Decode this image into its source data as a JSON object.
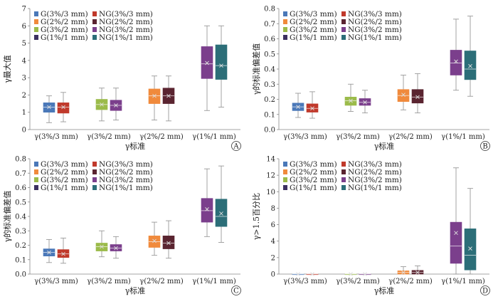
{
  "colors": {
    "G_3": "#4a78b8",
    "NG_3": "#c0392b",
    "G_2": "#f08a3c",
    "NG_2": "#5a2430",
    "G_c": "#9bbb4a",
    "NG_c": "#7b3f8c",
    "G_1": "#3c3060",
    "NG_1": "#2c6e78"
  },
  "chart_data": [
    {
      "panel": "A",
      "type": "box",
      "categories": [
        "γ(3%/3 mm)",
        "γ(3%/2 mm)",
        "γ(2%/2 mm)",
        "γ(1%/1 mm)"
      ],
      "xlabel": "γ标准",
      "ylabel": "γ最大值",
      "ylim": [
        0,
        7
      ],
      "yticks": [
        0,
        1,
        2,
        3,
        4,
        5,
        6,
        7
      ],
      "legend": {
        "placement": "top-left",
        "items": [
          {
            "label": "G(3%/3 mm)",
            "color": "#4a78b8"
          },
          {
            "label": "NG(3%/3 mm)",
            "color": "#c0392b"
          },
          {
            "label": "G(2%/2 mm)",
            "color": "#f08a3c"
          },
          {
            "label": "NG(2%/2 mm)",
            "color": "#5a2430"
          },
          {
            "label": "G(3%/2 mm)",
            "color": "#9bbb4a"
          },
          {
            "label": "NG(3%/2 mm)",
            "color": "#7b3f8c"
          },
          {
            "label": "G(1%/1 mm)",
            "color": "#3c3060"
          },
          {
            "label": "NG(1%/1 mm)",
            "color": "#2c6e78"
          }
        ]
      },
      "boxes": [
        {
          "group": 0,
          "color": "#4a78b8",
          "whisker_low": 0.4,
          "q1": 1.0,
          "median": 1.3,
          "q3": 1.55,
          "whisker_high": 1.95,
          "mean": 1.3
        },
        {
          "group": 0,
          "color": "#c0392b",
          "whisker_low": 0.45,
          "q1": 0.95,
          "median": 1.3,
          "q3": 1.55,
          "whisker_high": 2.15,
          "mean": 1.3
        },
        {
          "group": 1,
          "color": "#9bbb4a",
          "whisker_low": 0.5,
          "q1": 1.15,
          "median": 1.45,
          "q3": 1.75,
          "whisker_high": 2.4,
          "mean": 1.45
        },
        {
          "group": 1,
          "color": "#7b3f8c",
          "whisker_low": 0.55,
          "q1": 1.1,
          "median": 1.4,
          "q3": 1.7,
          "whisker_high": 2.4,
          "mean": 1.4
        },
        {
          "group": 2,
          "color": "#f08a3c",
          "whisker_low": 0.55,
          "q1": 1.5,
          "median": 1.95,
          "q3": 2.35,
          "whisker_high": 3.1,
          "mean": 1.95
        },
        {
          "group": 2,
          "color": "#5a2430",
          "whisker_low": 0.5,
          "q1": 1.5,
          "median": 1.95,
          "q3": 2.4,
          "whisker_high": 3.1,
          "mean": 1.95
        },
        {
          "group": 3,
          "color": "#7b3f8c",
          "whisker_low": 1.1,
          "q1": 2.95,
          "median": 3.8,
          "q3": 4.8,
          "whisker_high": 6.0,
          "mean": 3.85
        },
        {
          "group": 3,
          "color": "#2c6e78",
          "whisker_low": 1.3,
          "q1": 2.9,
          "median": 3.7,
          "q3": 4.9,
          "whisker_high": 6.0,
          "mean": 3.7
        }
      ]
    },
    {
      "panel": "B",
      "type": "box",
      "categories": [
        "γ(3%/3 mm)",
        "γ(3%/2 mm)",
        "γ(2%/2 mm)",
        "γ(1%/1 mm)"
      ],
      "xlabel": "γ标准",
      "ylabel": "γ的标准偏差值",
      "ylim": [
        0,
        0.8
      ],
      "yticks": [
        0,
        0.1,
        0.2,
        0.3,
        0.4,
        0.5,
        0.6,
        0.7,
        0.8
      ],
      "legend": {
        "placement": "top-left",
        "items": [
          {
            "label": "G(3%/3 mm)",
            "color": "#4a78b8"
          },
          {
            "label": "NG(3%/3 mm)",
            "color": "#c0392b"
          },
          {
            "label": "G(2%/2 mm)",
            "color": "#f08a3c"
          },
          {
            "label": "NG(2%/2 mm)",
            "color": "#5a2430"
          },
          {
            "label": "G(3%/2 mm)",
            "color": "#9bbb4a"
          },
          {
            "label": "NG(3%/2 mm)",
            "color": "#7b3f8c"
          },
          {
            "label": "G(1%/1 mm)",
            "color": "#3c3060"
          },
          {
            "label": "NG(1%/1 mm)",
            "color": "#2c6e78"
          }
        ]
      },
      "boxes": [
        {
          "group": 0,
          "color": "#4a78b8",
          "whisker_low": 0.08,
          "q1": 0.125,
          "median": 0.15,
          "q3": 0.175,
          "whisker_high": 0.24,
          "mean": 0.15
        },
        {
          "group": 0,
          "color": "#c0392b",
          "whisker_low": 0.075,
          "q1": 0.115,
          "median": 0.14,
          "q3": 0.17,
          "whisker_high": 0.25,
          "mean": 0.14
        },
        {
          "group": 1,
          "color": "#9bbb4a",
          "whisker_low": 0.12,
          "q1": 0.16,
          "median": 0.19,
          "q3": 0.215,
          "whisker_high": 0.3,
          "mean": 0.19
        },
        {
          "group": 1,
          "color": "#7b3f8c",
          "whisker_low": 0.11,
          "q1": 0.16,
          "median": 0.18,
          "q3": 0.205,
          "whisker_high": 0.26,
          "mean": 0.18
        },
        {
          "group": 2,
          "color": "#f08a3c",
          "whisker_low": 0.13,
          "q1": 0.185,
          "median": 0.225,
          "q3": 0.265,
          "whisker_high": 0.36,
          "mean": 0.23
        },
        {
          "group": 2,
          "color": "#5a2430",
          "whisker_low": 0.11,
          "q1": 0.175,
          "median": 0.215,
          "q3": 0.265,
          "whisker_high": 0.37,
          "mean": 0.215
        },
        {
          "group": 3,
          "color": "#7b3f8c",
          "whisker_low": 0.26,
          "q1": 0.36,
          "median": 0.44,
          "q3": 0.525,
          "whisker_high": 0.73,
          "mean": 0.45
        },
        {
          "group": 3,
          "color": "#2c6e78",
          "whisker_low": 0.22,
          "q1": 0.33,
          "median": 0.4,
          "q3": 0.52,
          "whisker_high": 0.75,
          "mean": 0.42
        }
      ]
    },
    {
      "panel": "C",
      "type": "box",
      "categories": [
        "γ(3%/3 mm)",
        "γ(3%/2 mm)",
        "γ(2%/2 mm)",
        "γ(1%/1 mm)"
      ],
      "xlabel": "γ标准",
      "ylabel": "γ的标准偏差值",
      "ylim": [
        0,
        0.8
      ],
      "yticks": [
        0,
        0.1,
        0.2,
        0.3,
        0.4,
        0.5,
        0.6,
        0.7,
        0.8
      ],
      "legend": {
        "placement": "top-left",
        "items": [
          {
            "label": "G(3%/3 mm)",
            "color": "#4a78b8"
          },
          {
            "label": "NG(3%/3 mm)",
            "color": "#c0392b"
          },
          {
            "label": "G(2%/2 mm)",
            "color": "#f08a3c"
          },
          {
            "label": "NG(2%/2 mm)",
            "color": "#5a2430"
          },
          {
            "label": "G(3%/2 mm)",
            "color": "#9bbb4a"
          },
          {
            "label": "NG(3%/2 mm)",
            "color": "#7b3f8c"
          },
          {
            "label": "G(1%/1 mm)",
            "color": "#3c3060"
          },
          {
            "label": "NG(1%/1 mm)",
            "color": "#2c6e78"
          }
        ]
      },
      "boxes": [
        {
          "group": 0,
          "color": "#4a78b8",
          "whisker_low": 0.08,
          "q1": 0.125,
          "median": 0.15,
          "q3": 0.175,
          "whisker_high": 0.24,
          "mean": 0.15
        },
        {
          "group": 0,
          "color": "#c0392b",
          "whisker_low": 0.075,
          "q1": 0.115,
          "median": 0.14,
          "q3": 0.17,
          "whisker_high": 0.25,
          "mean": 0.14
        },
        {
          "group": 1,
          "color": "#9bbb4a",
          "whisker_low": 0.12,
          "q1": 0.16,
          "median": 0.19,
          "q3": 0.215,
          "whisker_high": 0.3,
          "mean": 0.19
        },
        {
          "group": 1,
          "color": "#7b3f8c",
          "whisker_low": 0.11,
          "q1": 0.16,
          "median": 0.18,
          "q3": 0.205,
          "whisker_high": 0.26,
          "mean": 0.18
        },
        {
          "group": 2,
          "color": "#f08a3c",
          "whisker_low": 0.13,
          "q1": 0.185,
          "median": 0.225,
          "q3": 0.265,
          "whisker_high": 0.36,
          "mean": 0.23
        },
        {
          "group": 2,
          "color": "#5a2430",
          "whisker_low": 0.11,
          "q1": 0.175,
          "median": 0.215,
          "q3": 0.265,
          "whisker_high": 0.37,
          "mean": 0.215
        },
        {
          "group": 3,
          "color": "#7b3f8c",
          "whisker_low": 0.26,
          "q1": 0.36,
          "median": 0.44,
          "q3": 0.525,
          "whisker_high": 0.73,
          "mean": 0.45
        },
        {
          "group": 3,
          "color": "#2c6e78",
          "whisker_low": 0.22,
          "q1": 0.33,
          "median": 0.4,
          "q3": 0.52,
          "whisker_high": 0.75,
          "mean": 0.42
        }
      ]
    },
    {
      "panel": "D",
      "type": "box",
      "categories": [
        "γ(3%/3 mm)",
        "γ(3%/2 mm)",
        "γ(2%/2 mm)",
        "γ(1%/1 mm)"
      ],
      "xlabel": "γ标准",
      "ylabel": "γ>1.5百分比",
      "ylim": [
        0,
        14
      ],
      "yticks": [
        0,
        2,
        4,
        6,
        8,
        10,
        12,
        14
      ],
      "legend": {
        "placement": "top-left",
        "items": [
          {
            "label": "G(3%/3 mm)",
            "color": "#4a78b8"
          },
          {
            "label": "NG(3%/3 mm)",
            "color": "#c0392b"
          },
          {
            "label": "G(2%/2 mm)",
            "color": "#f08a3c"
          },
          {
            "label": "NG(2%/2 mm)",
            "color": "#5a2430"
          },
          {
            "label": "G(3%/2 mm)",
            "color": "#9bbb4a"
          },
          {
            "label": "NG(3%/2 mm)",
            "color": "#7b3f8c"
          },
          {
            "label": "G(1%/1 mm)",
            "color": "#3c3060"
          },
          {
            "label": "NG(1%/1 mm)",
            "color": "#2c6e78"
          }
        ]
      },
      "boxes": [
        {
          "group": 0,
          "color": "#4a78b8",
          "whisker_low": 0,
          "q1": 0,
          "median": 0,
          "q3": 0,
          "whisker_high": 0,
          "mean": 0
        },
        {
          "group": 0,
          "color": "#c0392b",
          "whisker_low": 0,
          "q1": 0,
          "median": 0,
          "q3": 0,
          "whisker_high": 0,
          "mean": 0
        },
        {
          "group": 1,
          "color": "#9bbb4a",
          "whisker_low": 0,
          "q1": 0,
          "median": 0,
          "q3": 0,
          "whisker_high": 0,
          "mean": 0
        },
        {
          "group": 1,
          "color": "#7b3f8c",
          "whisker_low": 0,
          "q1": 0,
          "median": 0,
          "q3": 0,
          "whisker_high": 0,
          "mean": 0
        },
        {
          "group": 2,
          "color": "#f08a3c",
          "whisker_low": 0,
          "q1": 0.0,
          "median": 0.2,
          "q3": 0.4,
          "whisker_high": 0.9,
          "mean": 0.2
        },
        {
          "group": 2,
          "color": "#5a2430",
          "whisker_low": 0,
          "q1": 0.0,
          "median": 0.2,
          "q3": 0.45,
          "whisker_high": 1.0,
          "mean": 0.2
        },
        {
          "group": 3,
          "color": "#7b3f8c",
          "whisker_low": 0,
          "q1": 1.3,
          "median": 3.4,
          "q3": 6.3,
          "whisker_high": 12.9,
          "mean": 5.0
        },
        {
          "group": 3,
          "color": "#2c6e78",
          "whisker_low": 0,
          "q1": 0.5,
          "median": 2.3,
          "q3": 5.5,
          "whisker_high": 10.4,
          "mean": 3.1
        }
      ]
    }
  ]
}
